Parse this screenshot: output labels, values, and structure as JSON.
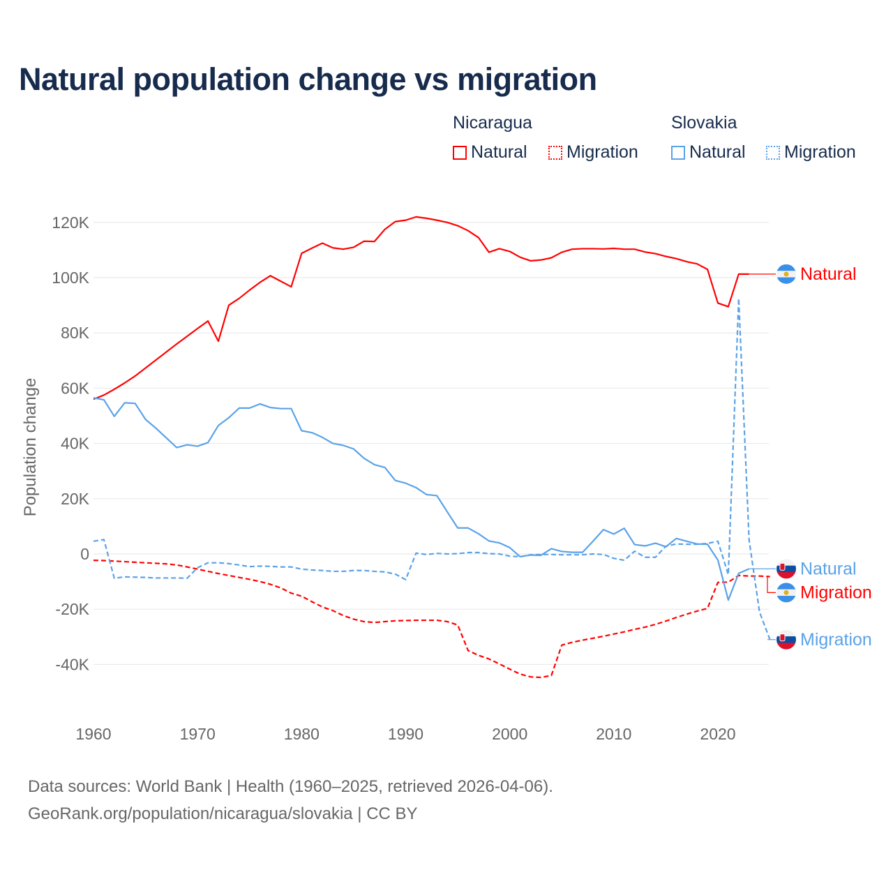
{
  "title": "Natural population change vs migration",
  "legend": {
    "groups": [
      {
        "name": "Nicaragua",
        "items": [
          "Natural",
          "Migration"
        ],
        "color": "#ff0000"
      },
      {
        "name": "Slovakia",
        "items": [
          "Natural",
          "Migration"
        ],
        "color": "#5aa2e8"
      }
    ]
  },
  "source": {
    "line1": "Data sources: World Bank | Health (1960–2025, retrieved 2026-04-06).",
    "line2": "GeoRank.org/population/nicaragua/slovakia | CC BY"
  },
  "chart_data": {
    "type": "line",
    "title": "Natural population change vs migration",
    "xlabel": "",
    "ylabel": "Population change",
    "xlim": [
      1960,
      2025
    ],
    "ylim": [
      -50000,
      130000
    ],
    "x_ticks": [
      1960,
      1970,
      1980,
      1990,
      2000,
      2010,
      2020
    ],
    "x_tick_labels": [
      "1960",
      "1970",
      "1980",
      "1990",
      "2000",
      "2010",
      "2020"
    ],
    "y_ticks": [
      -40000,
      -20000,
      0,
      20000,
      40000,
      60000,
      80000,
      100000,
      120000
    ],
    "y_tick_labels": [
      "-40K",
      "-20K",
      "0",
      "20K",
      "40K",
      "60K",
      "80K",
      "100K",
      "120K"
    ],
    "grid": true,
    "series": [
      {
        "name": "Nicaragua Natural",
        "end_label": "Natural",
        "country": "nicaragua",
        "color": "#ff0000",
        "dashed": false,
        "x_start": 1960,
        "values": [
          56000,
          57500,
          59600,
          61900,
          64400,
          67300,
          70200,
          73100,
          76000,
          78800,
          81600,
          84300,
          77000,
          90000,
          92500,
          95500,
          98300,
          100700,
          98700,
          96700,
          108800,
          110700,
          112500,
          110800,
          110300,
          111000,
          113200,
          113100,
          117500,
          120300,
          120800,
          122000,
          121500,
          120800,
          120000,
          118800,
          117000,
          114500,
          109200,
          110500,
          109500,
          107400,
          106100,
          106400,
          107200,
          109200,
          110300,
          110500,
          110500,
          110400,
          110600,
          110300,
          110300,
          109300,
          108700,
          107700,
          106900,
          105800,
          105000,
          103000,
          90800,
          89500,
          101300,
          101300
        ]
      },
      {
        "name": "Nicaragua Migration",
        "end_label": "Migration",
        "country": "nicaragua",
        "color": "#ff0000",
        "dashed": true,
        "x_start": 1960,
        "values": [
          -2300,
          -2400,
          -2600,
          -2800,
          -3000,
          -3200,
          -3400,
          -3600,
          -4000,
          -4700,
          -5500,
          -6300,
          -7100,
          -7800,
          -8500,
          -9200,
          -10000,
          -11000,
          -12300,
          -14200,
          -15300,
          -17300,
          -19200,
          -20500,
          -22300,
          -23600,
          -24500,
          -24800,
          -24500,
          -24200,
          -24100,
          -24000,
          -24000,
          -24000,
          -24500,
          -25700,
          -35000,
          -36700,
          -38000,
          -39800,
          -41700,
          -43500,
          -44500,
          -44700,
          -44000,
          -33000,
          -32000,
          -31200,
          -30500,
          -29800,
          -29000,
          -28200,
          -27300,
          -26500,
          -25500,
          -24300,
          -23000,
          -21800,
          -20700,
          -19700,
          -10300,
          -10200,
          -7800,
          -8000,
          -8000,
          -8200
        ]
      },
      {
        "name": "Slovakia Natural",
        "end_label": "Natural",
        "country": "slovakia",
        "color": "#5aa2e8",
        "dashed": false,
        "x_start": 1960,
        "values": [
          56500,
          55800,
          49800,
          54700,
          54500,
          48700,
          45500,
          42000,
          38500,
          39500,
          39000,
          40300,
          46500,
          49300,
          52800,
          52800,
          54300,
          53000,
          52600,
          52600,
          44600,
          43900,
          42200,
          40000,
          39300,
          38000,
          34600,
          32300,
          31300,
          26600,
          25600,
          24000,
          21500,
          21100,
          15200,
          9400,
          9400,
          7300,
          4700,
          4000,
          2300,
          -1000,
          -400,
          -500,
          1900,
          900,
          600,
          600,
          4600,
          8800,
          7200,
          9300,
          3400,
          2900,
          3900,
          2600,
          5600,
          4600,
          3600,
          3500,
          -2200,
          -16700,
          -7000,
          -5400
        ]
      },
      {
        "name": "Slovakia Migration",
        "end_label": "Migration",
        "country": "slovakia",
        "color": "#5aa2e8",
        "dashed": true,
        "x_start": 1960,
        "values": [
          4600,
          5200,
          -8800,
          -8300,
          -8400,
          -8500,
          -8700,
          -8700,
          -8700,
          -8800,
          -5000,
          -3200,
          -3200,
          -3500,
          -4000,
          -4600,
          -4400,
          -4500,
          -4700,
          -4700,
          -5500,
          -5800,
          -6000,
          -6300,
          -6300,
          -6000,
          -6000,
          -6300,
          -6500,
          -7300,
          -9300,
          300,
          -200,
          200,
          0,
          100,
          500,
          500,
          100,
          0,
          -800,
          -1000,
          -300,
          -200,
          -200,
          -300,
          -300,
          -300,
          0,
          -200,
          -1600,
          -2300,
          1000,
          -1200,
          -1200,
          2800,
          3600,
          3500,
          3500,
          3800,
          4600,
          -7500,
          92500,
          5000,
          -21000,
          -31000
        ]
      }
    ]
  }
}
